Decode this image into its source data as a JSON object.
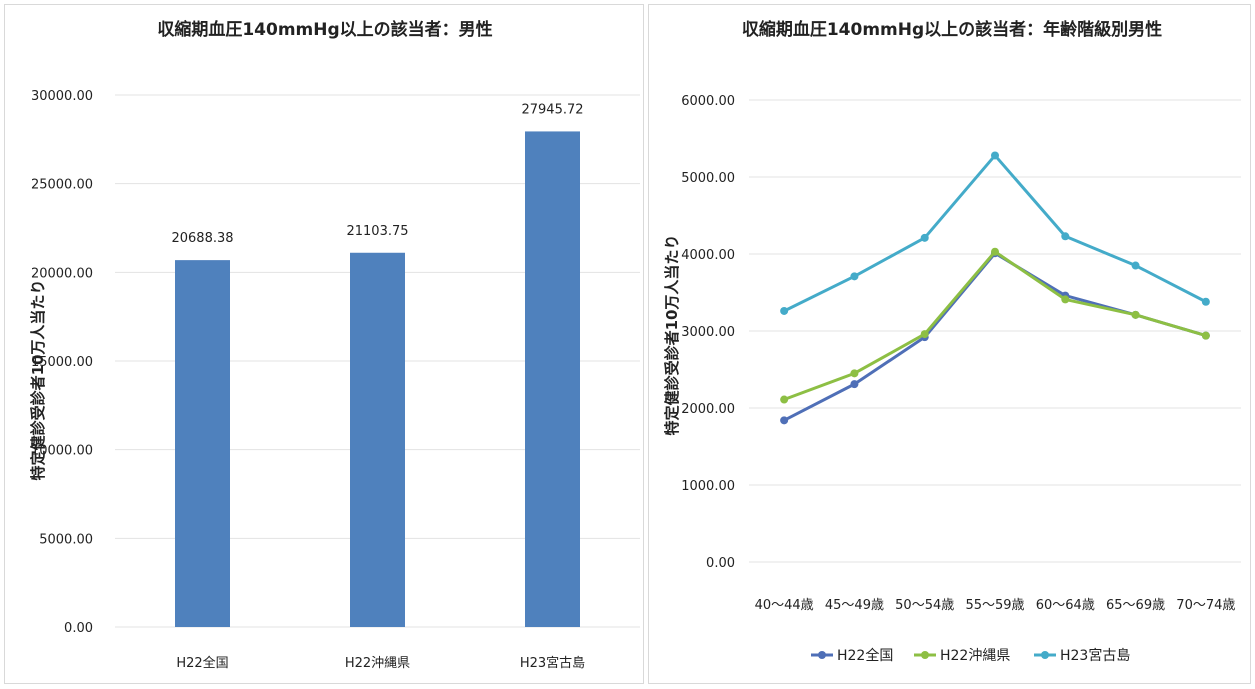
{
  "chart_data": [
    {
      "type": "bar",
      "title": "収縮期血圧140mmHg以上の該当者：男性",
      "ylabel": "特定健診受診者10万人当たり",
      "xlabel": "",
      "categories": [
        "H22全国",
        "H22沖縄県",
        "H23宮古島"
      ],
      "values": [
        20688.38,
        21103.75,
        27945.72
      ],
      "data_labels": [
        "20688.38",
        "21103.75",
        "27945.72"
      ],
      "ylim": [
        0,
        30000
      ],
      "yticks": [
        "0.00",
        "5000.00",
        "10000.00",
        "15000.00",
        "20000.00",
        "25000.00",
        "30000.00"
      ],
      "grid": true,
      "legend": "none",
      "color": "#4f81bd"
    },
    {
      "type": "line",
      "title": "収縮期血圧140mmHg以上の該当者：年齢階級別男性",
      "ylabel": "特定健診受診者10万人当たり",
      "xlabel": "",
      "categories": [
        "40～44歳",
        "45～49歳",
        "50～54歳",
        "55～59歳",
        "60～64歳",
        "65～69歳",
        "70～74歳"
      ],
      "ylim": [
        0,
        6000
      ],
      "yticks": [
        "0.00",
        "1000.00",
        "2000.00",
        "3000.00",
        "4000.00",
        "5000.00",
        "6000.00"
      ],
      "grid": true,
      "legend": "bottom",
      "series": [
        {
          "name": "H22全国",
          "color": "#4f6fb7",
          "values": [
            1840,
            2310,
            2920,
            4010,
            3460,
            3210,
            2940
          ]
        },
        {
          "name": "H22沖縄県",
          "color": "#8dbf44",
          "values": [
            2110,
            2450,
            2960,
            4030,
            3410,
            3210,
            2940
          ]
        },
        {
          "name": "H23宮古島",
          "color": "#44abc9",
          "values": [
            3260,
            3710,
            4210,
            5280,
            4230,
            3850,
            3380
          ]
        }
      ]
    }
  ]
}
